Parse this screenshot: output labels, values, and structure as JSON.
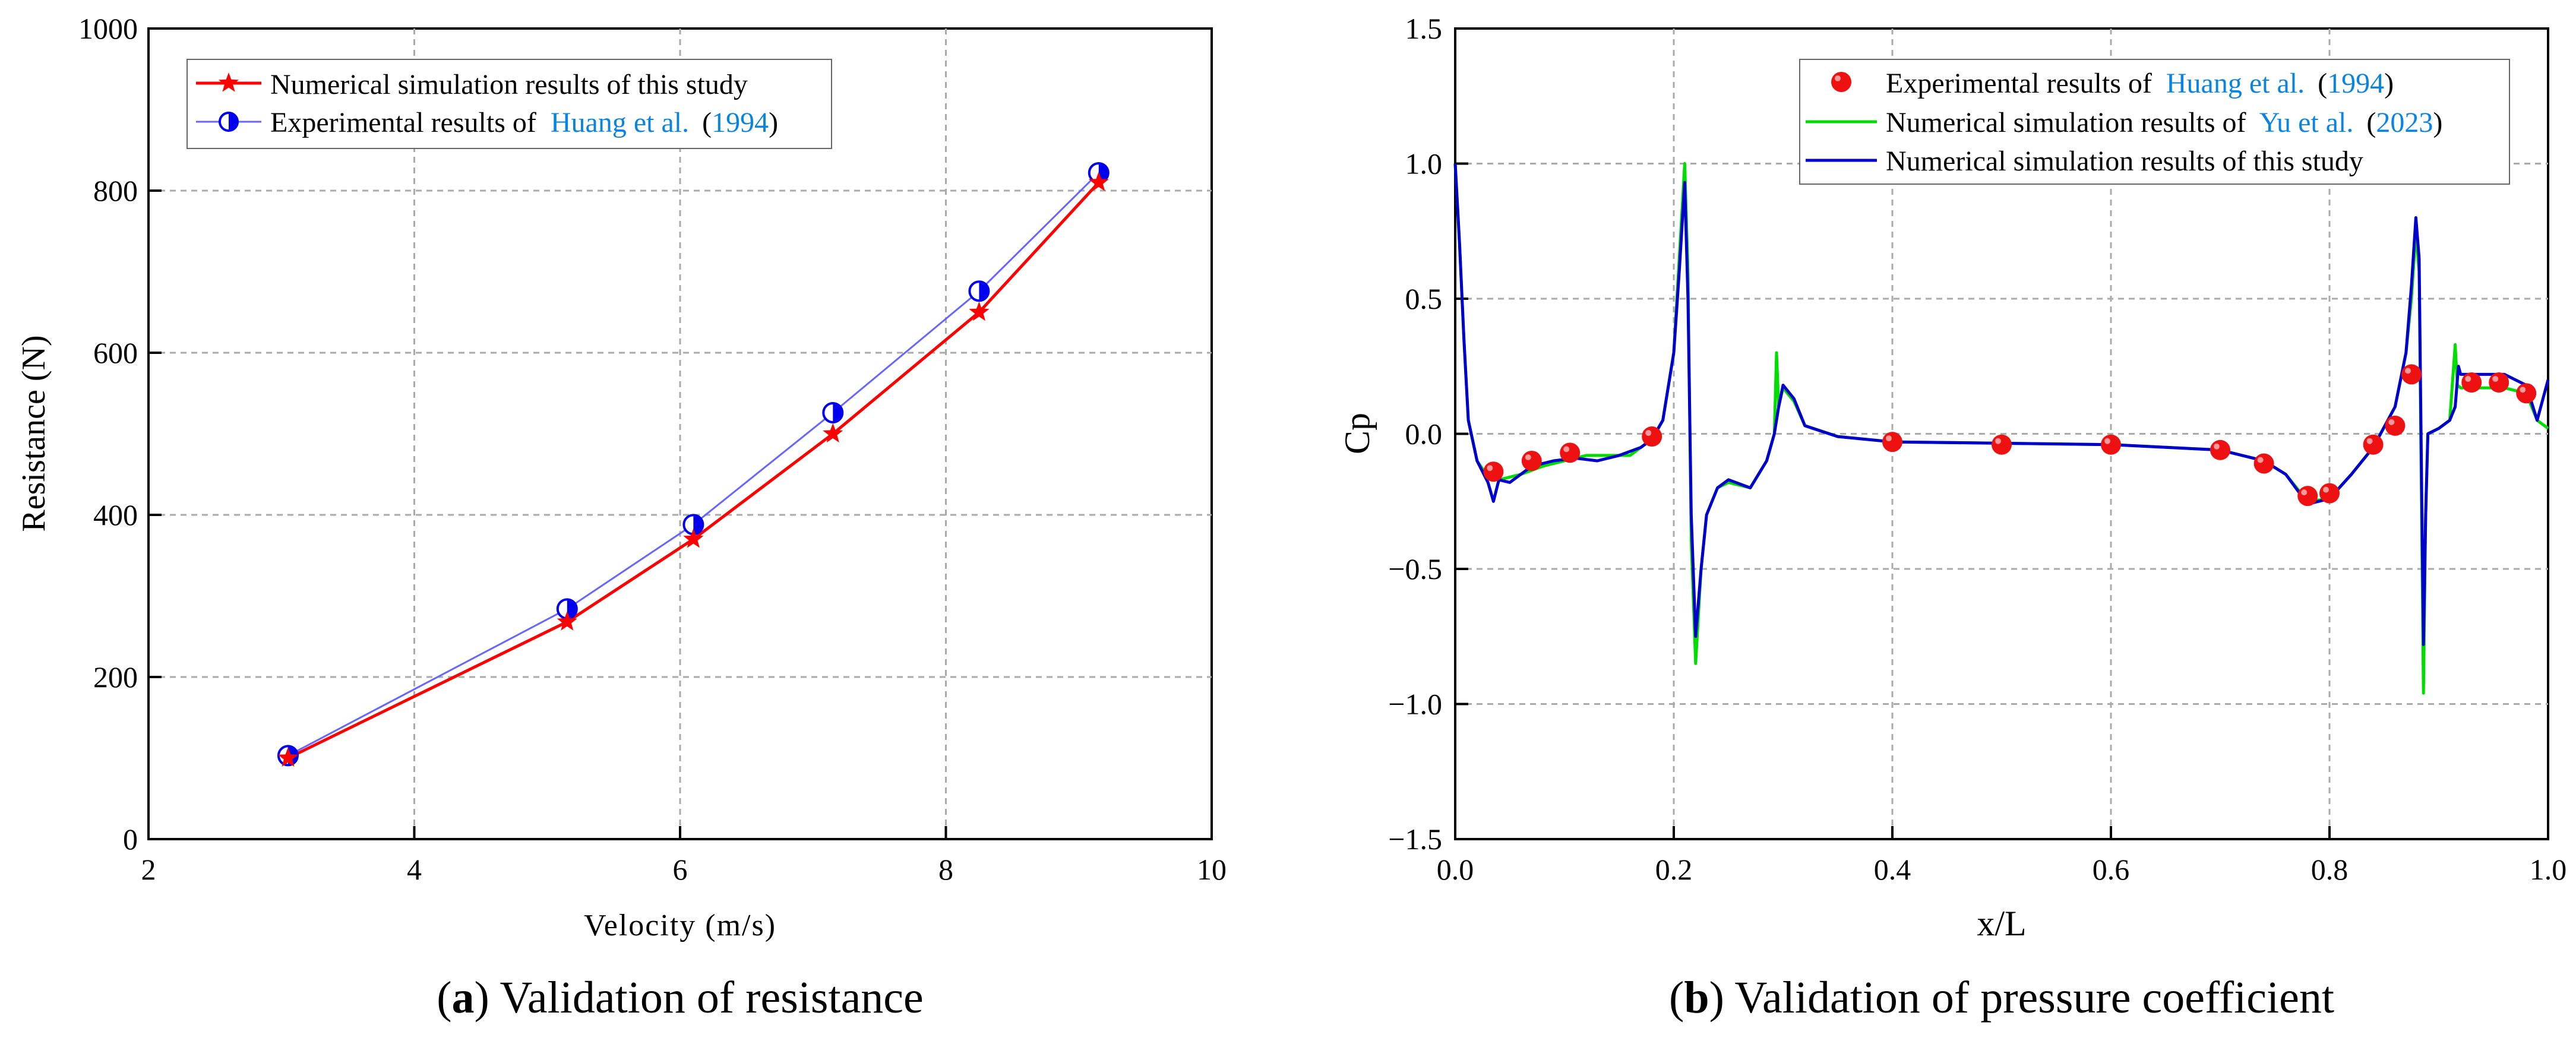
{
  "colors": {
    "sim_a": "#ff0000",
    "exp_a": "#0000ee",
    "exp_a_line": "#6666ff",
    "exp_b": "#ee1111",
    "yu_b": "#00dd00",
    "sim_b": "#0000cc",
    "cite": "#0b84e0",
    "grid": "#aaaaaa"
  },
  "chart_data": [
    {
      "type": "line",
      "panel_letter": "a",
      "caption": "Validation of resistance",
      "xlabel": "Velocity (m/s)",
      "ylabel": "Resistance (N)",
      "xlim": [
        2,
        10
      ],
      "ylim": [
        0,
        1000
      ],
      "xticks": [
        "2",
        "4",
        "6",
        "8",
        "10"
      ],
      "yticks": [
        "0",
        "200",
        "400",
        "600",
        "800",
        "1000"
      ],
      "grid": true,
      "legend_position": "top-left",
      "series": [
        {
          "name": "Numerical simulation results of this study",
          "legend_parts": [
            "Numerical simulation results of this study"
          ],
          "marker": "star",
          "x": [
            3.05,
            5.15,
            6.1,
            7.15,
            8.25,
            9.15
          ],
          "y": [
            100,
            268,
            370,
            500,
            650,
            810
          ]
        },
        {
          "name": "Experimental results of Huang et al. (1994)",
          "legend_parts": [
            "Experimental results of ",
            "Huang et al.",
            " (",
            "1994",
            ")"
          ],
          "marker": "half-filled circle",
          "x": [
            3.05,
            5.15,
            6.1,
            7.15,
            8.25,
            9.15
          ],
          "y": [
            103,
            284,
            388,
            526,
            676,
            822
          ]
        }
      ]
    },
    {
      "type": "line",
      "panel_letter": "b",
      "caption": "Validation of pressure coefficient",
      "xlabel": "x/L",
      "ylabel": "Cp",
      "xlim": [
        0,
        1
      ],
      "ylim": [
        -1.5,
        1.5
      ],
      "xticks": [
        "0.0",
        "0.2",
        "0.4",
        "0.6",
        "0.8",
        "1.0"
      ],
      "yticks": [
        "−1.5",
        "−1.0",
        "−0.5",
        "0.0",
        "0.5",
        "1.0",
        "1.5"
      ],
      "grid": true,
      "legend_position": "top-right",
      "series": [
        {
          "name": "Experimental results of Huang et al. (1994)",
          "legend_parts": [
            "Experimental results of ",
            "Huang et al.",
            " (",
            "1994",
            ")"
          ],
          "style": "markers",
          "x": [
            0.035,
            0.07,
            0.105,
            0.18,
            0.4,
            0.5,
            0.6,
            0.7,
            0.74,
            0.78,
            0.8,
            0.84,
            0.86,
            0.875,
            0.93,
            0.955,
            0.98
          ],
          "y": [
            -0.14,
            -0.1,
            -0.07,
            -0.01,
            -0.03,
            -0.04,
            -0.04,
            -0.06,
            -0.11,
            -0.23,
            -0.22,
            -0.04,
            0.03,
            0.22,
            0.19,
            0.19,
            0.15
          ]
        },
        {
          "name": "Numerical simulation results of Yu et al. (2023)",
          "legend_parts": [
            "Numerical simulation results of ",
            "Yu et al.",
            " (",
            "2023",
            ")"
          ],
          "style": "line",
          "x": [
            0,
            0.004,
            0.008,
            0.012,
            0.02,
            0.03,
            0.04,
            0.06,
            0.08,
            0.1,
            0.12,
            0.14,
            0.16,
            0.18,
            0.19,
            0.2,
            0.205,
            0.21,
            0.213,
            0.216,
            0.22,
            0.225,
            0.23,
            0.24,
            0.25,
            0.27,
            0.285,
            0.292,
            0.294,
            0.296,
            0.3,
            0.31,
            0.32,
            0.35,
            0.4,
            0.5,
            0.6,
            0.7,
            0.74,
            0.76,
            0.78,
            0.8,
            0.82,
            0.84,
            0.86,
            0.87,
            0.875,
            0.879,
            0.882,
            0.884,
            0.886,
            0.888,
            0.89,
            0.9,
            0.91,
            0.915,
            0.917,
            0.92,
            0.93,
            0.96,
            0.98,
            0.99,
            1.0
          ],
          "y": [
            1.0,
            0.7,
            0.35,
            0.05,
            -0.1,
            -0.16,
            -0.17,
            -0.15,
            -0.12,
            -0.1,
            -0.08,
            -0.08,
            -0.08,
            -0.02,
            0.05,
            0.3,
            0.65,
            1.0,
            0.6,
            -0.4,
            -0.85,
            -0.5,
            -0.3,
            -0.2,
            -0.18,
            -0.2,
            -0.1,
            0.0,
            0.3,
            0.1,
            0.17,
            0.12,
            0.03,
            -0.01,
            -0.03,
            -0.035,
            -0.04,
            -0.06,
            -0.1,
            -0.15,
            -0.25,
            -0.24,
            -0.15,
            -0.05,
            0.1,
            0.3,
            0.5,
            0.75,
            0.6,
            -0.2,
            -0.96,
            -0.3,
            0.0,
            0.02,
            0.05,
            0.33,
            0.18,
            0.17,
            0.17,
            0.17,
            0.15,
            0.05,
            0.02
          ]
        },
        {
          "name": "Numerical simulation results of this study",
          "legend_parts": [
            "Numerical simulation results of this study"
          ],
          "style": "line",
          "x": [
            0,
            0.004,
            0.008,
            0.012,
            0.02,
            0.03,
            0.035,
            0.04,
            0.05,
            0.07,
            0.09,
            0.11,
            0.13,
            0.15,
            0.17,
            0.18,
            0.19,
            0.2,
            0.205,
            0.21,
            0.213,
            0.216,
            0.22,
            0.225,
            0.23,
            0.24,
            0.25,
            0.27,
            0.285,
            0.292,
            0.296,
            0.3,
            0.31,
            0.32,
            0.35,
            0.4,
            0.5,
            0.6,
            0.7,
            0.74,
            0.76,
            0.78,
            0.8,
            0.82,
            0.84,
            0.86,
            0.87,
            0.875,
            0.879,
            0.882,
            0.884,
            0.886,
            0.888,
            0.89,
            0.9,
            0.91,
            0.915,
            0.918,
            0.92,
            0.93,
            0.96,
            0.98,
            0.99,
            1.0
          ],
          "y": [
            1.0,
            0.7,
            0.35,
            0.05,
            -0.1,
            -0.18,
            -0.25,
            -0.17,
            -0.18,
            -0.12,
            -0.1,
            -0.09,
            -0.1,
            -0.08,
            -0.05,
            -0.02,
            0.05,
            0.3,
            0.6,
            0.93,
            0.5,
            -0.3,
            -0.75,
            -0.5,
            -0.3,
            -0.2,
            -0.17,
            -0.2,
            -0.1,
            0.0,
            0.1,
            0.18,
            0.13,
            0.03,
            -0.01,
            -0.03,
            -0.035,
            -0.04,
            -0.06,
            -0.1,
            -0.15,
            -0.26,
            -0.24,
            -0.15,
            -0.05,
            0.1,
            0.3,
            0.55,
            0.8,
            0.65,
            -0.1,
            -0.78,
            -0.3,
            0.0,
            0.02,
            0.05,
            0.1,
            0.25,
            0.22,
            0.22,
            0.22,
            0.18,
            0.05,
            0.2
          ]
        }
      ]
    }
  ]
}
